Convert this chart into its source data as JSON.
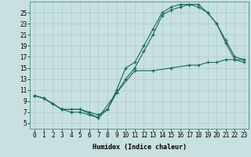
{
  "bg_color": "#c8e0e0",
  "line_color": "#1a6b5a",
  "grid_color": "#a8cece",
  "xlabel": "Humidex (Indice chaleur)",
  "xlabel_fontsize": 6,
  "tick_fontsize": 5.5,
  "xlim": [
    -0.5,
    23.5
  ],
  "ylim": [
    4,
    27
  ],
  "yticks": [
    5,
    7,
    9,
    11,
    13,
    15,
    17,
    19,
    21,
    23,
    25
  ],
  "xticks": [
    0,
    1,
    2,
    3,
    4,
    5,
    6,
    7,
    8,
    9,
    10,
    11,
    12,
    13,
    14,
    15,
    16,
    17,
    18,
    19,
    20,
    21,
    22,
    23
  ],
  "line1_x": [
    0,
    1,
    2,
    3,
    4,
    5,
    6,
    7,
    8,
    9,
    10,
    11,
    12,
    13,
    14,
    15,
    16,
    17,
    18,
    19,
    20,
    21,
    22,
    23
  ],
  "line1_y": [
    10,
    9.5,
    8.5,
    7.5,
    7.5,
    7.5,
    7.0,
    6.5,
    7.5,
    11.0,
    15.0,
    16.0,
    19.0,
    22.0,
    25.0,
    26.0,
    26.5,
    26.5,
    26.0,
    25.0,
    23.0,
    20.0,
    17.0,
    16.5
  ],
  "line2_x": [
    0,
    1,
    2,
    3,
    4,
    5,
    6,
    7,
    8,
    9,
    10,
    11,
    12,
    13,
    14,
    15,
    16,
    17,
    18,
    19,
    20,
    21,
    22,
    23
  ],
  "line2_y": [
    10,
    9.5,
    8.5,
    7.5,
    7.0,
    7.0,
    6.5,
    6.0,
    7.5,
    10.5,
    13.0,
    15.0,
    18.0,
    21.0,
    24.5,
    25.5,
    26.0,
    26.5,
    26.5,
    25.0,
    23.0,
    19.5,
    16.5,
    16.0
  ],
  "line3_x": [
    0,
    1,
    3,
    5,
    7,
    9,
    11,
    13,
    15,
    17,
    18,
    19,
    20,
    21,
    22,
    23
  ],
  "line3_y": [
    10,
    9.5,
    7.5,
    7.5,
    6.0,
    10.5,
    14.5,
    14.5,
    15.0,
    15.5,
    15.5,
    16.0,
    16.0,
    16.5,
    16.5,
    16.5
  ]
}
